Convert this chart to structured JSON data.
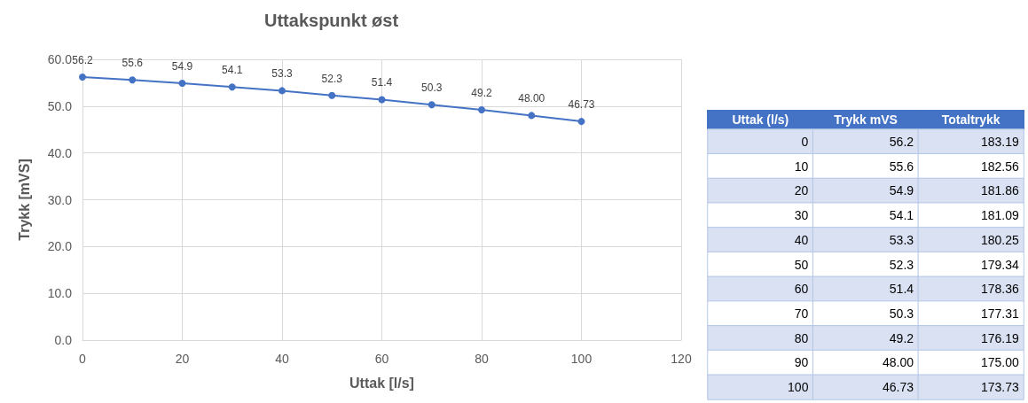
{
  "chart_data": [
    {
      "type": "line",
      "title": "Uttakspunkt øst",
      "xlabel": "Uttak [l/s]",
      "ylabel": "Trykk [mVS]",
      "x": [
        0,
        10,
        20,
        30,
        40,
        50,
        60,
        70,
        80,
        90,
        100
      ],
      "series": [
        {
          "color": "#4472c4",
          "values": [
            56.2,
            55.6,
            54.9,
            54.1,
            53.3,
            52.3,
            51.4,
            50.3,
            49.2,
            48.0,
            46.73
          ],
          "value_labels": [
            "56.2",
            "55.6",
            "54.9",
            "54.1",
            "53.3",
            "52.3",
            "51.4",
            "50.3",
            "49.2",
            "48.00",
            "46.73"
          ]
        }
      ],
      "xlim": [
        0,
        120
      ],
      "xticks": [
        0,
        20,
        40,
        60,
        80,
        100,
        120
      ],
      "ylim": [
        0,
        60
      ],
      "yticks": [
        {
          "value": 0,
          "label": "0.0"
        },
        {
          "value": 10,
          "label": "10.0"
        },
        {
          "value": 20,
          "label": "20.0"
        },
        {
          "value": 30,
          "label": "30.0"
        },
        {
          "value": 40,
          "label": "40.0"
        },
        {
          "value": 50,
          "label": "50.0"
        },
        {
          "value": 60,
          "label": "60.0"
        }
      ],
      "grid": true,
      "marker": "circle",
      "line_style": "solid"
    },
    {
      "type": "heatmap",
      "categories": [
        "Uttak (l/s)",
        "Trykk mVS",
        "Totaltrykk"
      ],
      "y_categories": [
        null,
        null,
        null,
        null,
        null,
        null,
        null,
        null,
        null,
        null,
        null
      ],
      "cells": [
        [
          0,
          56.2,
          183.19
        ],
        [
          10,
          55.6,
          182.56
        ],
        [
          20,
          54.9,
          181.86
        ],
        [
          30,
          54.1,
          181.09
        ],
        [
          40,
          53.3,
          180.25
        ],
        [
          50,
          52.3,
          179.34
        ],
        [
          60,
          51.4,
          178.36
        ],
        [
          70,
          50.3,
          177.31
        ],
        [
          80,
          49.2,
          176.19
        ],
        [
          90,
          48.0,
          175.0
        ],
        [
          100,
          46.73,
          173.73
        ]
      ],
      "cell_labels": [
        [
          "0",
          "56.2",
          "183.19"
        ],
        [
          "10",
          "55.6",
          "182.56"
        ],
        [
          "20",
          "54.9",
          "181.86"
        ],
        [
          "30",
          "54.1",
          "181.09"
        ],
        [
          "40",
          "53.3",
          "180.25"
        ],
        [
          "50",
          "52.3",
          "179.34"
        ],
        [
          "60",
          "51.4",
          "178.36"
        ],
        [
          "70",
          "50.3",
          "177.31"
        ],
        [
          "80",
          "49.2",
          "176.19"
        ],
        [
          "90",
          "48.00",
          "175.00"
        ],
        [
          "100",
          "46.73",
          "173.73"
        ]
      ]
    }
  ]
}
